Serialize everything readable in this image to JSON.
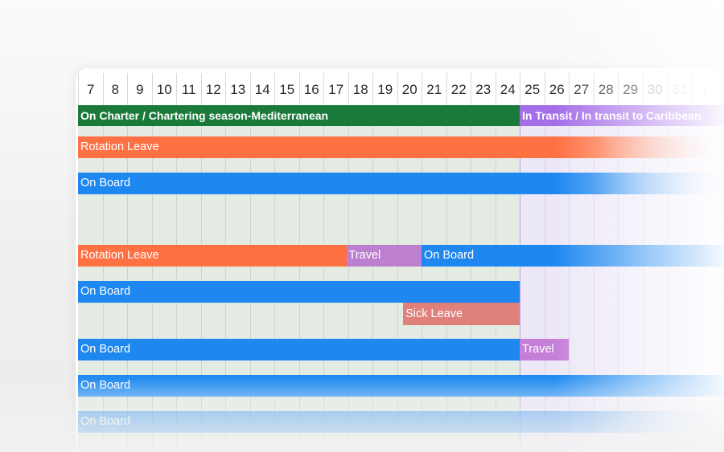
{
  "timeline": {
    "days": [
      "7",
      "8",
      "9",
      "10",
      "11",
      "12",
      "13",
      "14",
      "15",
      "16",
      "17",
      "18",
      "19",
      "20",
      "21",
      "22",
      "23",
      "24",
      "25",
      "26",
      "27",
      "28",
      "29",
      "30",
      "31",
      "1"
    ],
    "periods": [
      {
        "label": "On Charter / Chartering season-Mediterranean",
        "color": "#1a7a3a",
        "bg": "#e3ebe3"
      },
      {
        "label": "In Transit / In transit to Caribbean",
        "color": "#a46ee8",
        "bg": "#ede8f7"
      }
    ],
    "rows": [
      {
        "bars": [
          {
            "label": "Rotation Leave",
            "color": "#ff7043"
          }
        ]
      },
      {
        "bars": [
          {
            "label": "On Board",
            "color": "#1e88f0"
          }
        ]
      },
      {
        "bars": []
      },
      {
        "bars": [
          {
            "label": "Rotation Leave",
            "color": "#ff7043"
          },
          {
            "label": "Travel",
            "color": "#bd7fd0"
          },
          {
            "label": "On Board",
            "color": "#1e88f0"
          }
        ]
      },
      {
        "bars": [
          {
            "label": "On Board",
            "color": "#1e88f0"
          }
        ]
      },
      {
        "bars": [
          {
            "label": "Sick Leave",
            "color": "#e0807a"
          }
        ]
      },
      {
        "bars": [
          {
            "label": "On Board",
            "color": "#1e88f0"
          },
          {
            "label": "Travel",
            "color": "#c57fd8"
          }
        ]
      },
      {
        "bars": [
          {
            "label": "On Board",
            "color": "#1e88f0"
          }
        ]
      },
      {
        "bars": [
          {
            "label": "On Board",
            "color": "#1e88f0"
          }
        ]
      }
    ]
  }
}
